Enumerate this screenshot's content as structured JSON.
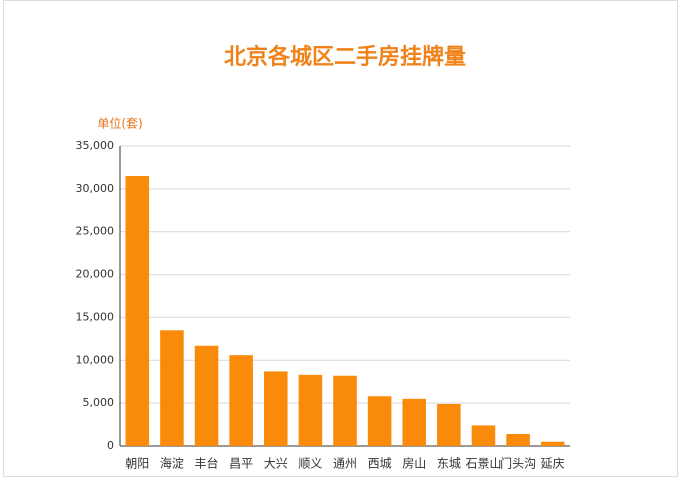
{
  "chart_data": {
    "type": "bar",
    "title": "北京各城区二手房挂牌量",
    "y_label": "单位(套)",
    "categories": [
      "朝阳",
      "海淀",
      "丰台",
      "昌平",
      "大兴",
      "顺义",
      "通州",
      "西城",
      "房山",
      "东城",
      "石景山",
      "门头沟",
      "延庆"
    ],
    "values": [
      31500,
      13500,
      11700,
      10600,
      8700,
      8300,
      8200,
      5800,
      5500,
      4900,
      2400,
      1400,
      500
    ],
    "color": "#fa8a0a",
    "ylim": [
      0,
      35000
    ],
    "yticks": [
      0,
      {
        "value": 5000,
        "label": "5,000"
      },
      {
        "value": 10000,
        "label": "10,000"
      },
      {
        "value": 15000,
        "label": "15,000"
      },
      {
        "value": 20000,
        "label": "20,000"
      },
      {
        "value": 25000,
        "label": "25,000"
      },
      {
        "value": 30000,
        "label": "30,000"
      },
      {
        "value": 35000,
        "label": "35,000"
      }
    ],
    "grid": true
  }
}
